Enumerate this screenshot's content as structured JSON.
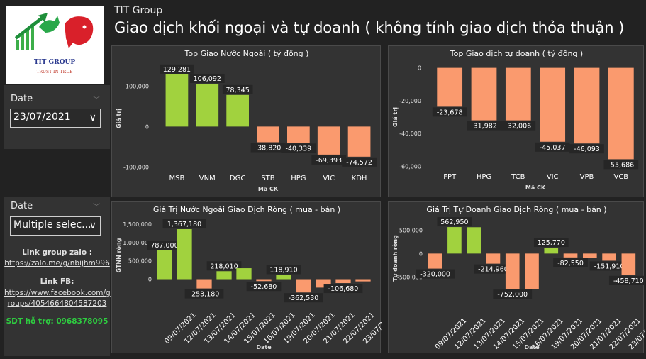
{
  "header": {
    "brand": "TIT Group",
    "title": "Giao dịch khối ngoại và tự doanh ( không tính giao dịch thỏa thuận )"
  },
  "logo": {
    "name": "TIT GROUP",
    "slogan": "TRUST IN TRUE"
  },
  "filters": {
    "date1": {
      "label": "Date",
      "value": "23/07/2021"
    },
    "date2": {
      "label": "Date",
      "value": "Multiple selec..."
    }
  },
  "links": {
    "zalo_label": "Link group zalo :",
    "zalo_url": "https://zalo.me/g/nbijhm996",
    "fb_label": "Link FB:",
    "fb_url_1": "https://www.facebook.com/g",
    "fb_url_2": "roups/4054664804587203",
    "phone": "SDT hỗ trợ: 0968378095"
  },
  "colors": {
    "positive": "#a1d23e",
    "negative": "#fa9a6e",
    "card": "#333333",
    "background": "#222222"
  },
  "chart_data": [
    {
      "type": "bar",
      "title": "Top Giao Nước Ngoài ( tỷ đồng )",
      "xlabel": "Mã CK",
      "ylabel": "Giá trị",
      "categories": [
        "MSB",
        "VNM",
        "DGC",
        "STB",
        "HPG",
        "VIC",
        "KDH"
      ],
      "values": [
        129281,
        106092,
        78345,
        -38820,
        -40339,
        -69393,
        -74572
      ],
      "labels": [
        "129,281",
        "106,092",
        "78,345",
        "-38,820",
        "-40,339",
        "-69,393",
        "-74,572"
      ],
      "ylim": [
        -110000,
        150000
      ],
      "ticks": [
        100000,
        0,
        -100000
      ],
      "tick_labels": [
        "100,000",
        "0",
        "-100,000"
      ]
    },
    {
      "type": "bar",
      "title": "Top Giao dịch tự doanh ( tỷ đồng )",
      "xlabel": "Mã CK",
      "ylabel": "Giá trị",
      "categories": [
        "FPT",
        "HPG",
        "TCB",
        "VIC",
        "VPB",
        "VCB"
      ],
      "values": [
        -23678,
        -31982,
        -32006,
        -45037,
        -46093,
        -55686
      ],
      "labels": [
        "-23,678",
        "-31,982",
        "-32,006",
        "-45,037",
        "-46,093",
        "-55,686"
      ],
      "ylim": [
        -62000,
        2000
      ],
      "ticks": [
        0,
        -20000,
        -40000,
        -60000
      ],
      "tick_labels": [
        "0",
        "-20,000",
        "-40,000",
        "-60,000"
      ]
    },
    {
      "type": "bar",
      "title": "Giá Trị Nước Ngoài Giao Dịch Ròng ( mua - bán )",
      "xlabel": "Date",
      "ylabel": "GTNN ròng",
      "categories": [
        "09/07/2021",
        "12/07/2021",
        "13/07/2021",
        "14/07/2021",
        "15/07/2021",
        "16/07/2021",
        "19/07/2021",
        "20/07/2021",
        "21/07/2021",
        "22/07/2021",
        "23/07/2021"
      ],
      "values": [
        787000,
        1367180,
        -253180,
        218010,
        300000,
        -52680,
        118910,
        -362530,
        -230000,
        -106680,
        -60000
      ],
      "labels": [
        "787,000",
        "1,367,180",
        "-253,180",
        "218,010",
        "",
        "-52,680",
        "118,910",
        "-362,530",
        "",
        "-106,680",
        ""
      ],
      "ylim": [
        -300000,
        1600000
      ],
      "ticks": [
        1500000,
        1000000,
        500000,
        0
      ],
      "tick_labels": [
        "1,500,000",
        "1,000,000",
        "500,000",
        "0"
      ]
    },
    {
      "type": "bar",
      "title": "Giá Trị Tự Doanh Giao Dịch Ròng ( mua - bán )",
      "xlabel": "Date",
      "ylabel": "Tự doanh ròng",
      "categories": [
        "09/07/2021",
        "12/07/2021",
        "13/07/2021",
        "14/07/2021",
        "15/07/2021",
        "16/07/2021",
        "19/07/2021",
        "20/07/2021",
        "21/07/2021",
        "22/07/2021",
        "23/07/2021"
      ],
      "values": [
        -320000,
        562950,
        560000,
        -214960,
        -752000,
        -752000,
        125770,
        -82550,
        -100000,
        -151910,
        -458710
      ],
      "labels": [
        "-320,000",
        "562,950",
        "",
        "-214,960",
        "-752,000",
        "",
        "125,770",
        "-82,550",
        "",
        "-151,910",
        "-458,710"
      ],
      "ylim": [
        -900000,
        700000
      ],
      "ticks": [
        500000,
        0,
        -500000
      ],
      "tick_labels": [
        "500,000",
        "0",
        "-500,000"
      ]
    }
  ]
}
